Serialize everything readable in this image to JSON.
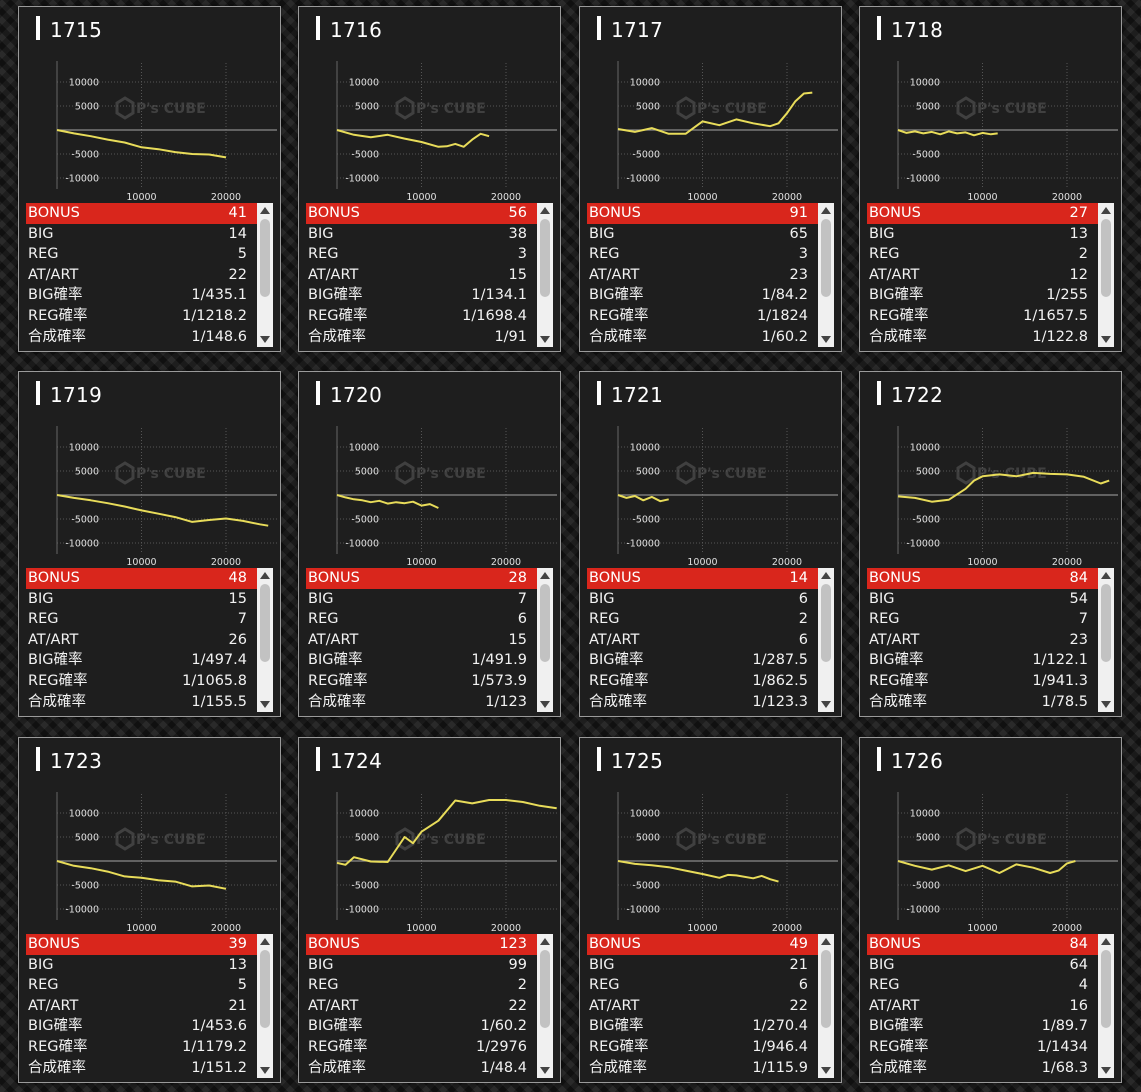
{
  "graph": {
    "y_ticks": [
      10000,
      5000,
      -5000,
      -10000
    ],
    "x_ticks": [
      10000,
      20000
    ],
    "x_max": 26000,
    "y_range": [
      -14000,
      16000
    ],
    "line_color": "#e8dc5a",
    "watermark_text": "P's CUBE"
  },
  "stat_labels": [
    "BONUS",
    "BIG",
    "REG",
    "AT/ART",
    "BIG確率",
    "REG確率",
    "合成確率"
  ],
  "machines": [
    {
      "id": "1715",
      "bonus": "41",
      "big": "14",
      "reg": "5",
      "at_art": "22",
      "big_rate": "1/435.1",
      "reg_rate": "1/1218.2",
      "total_rate": "1/148.6",
      "chart_data": {
        "type": "line",
        "x": [
          0,
          2000,
          4000,
          6000,
          8000,
          10000,
          12000,
          14000,
          16000,
          18000,
          20000
        ],
        "y": [
          0,
          -700,
          -1300,
          -2000,
          -2600,
          -3600,
          -4000,
          -4600,
          -5000,
          -5100,
          -5700
        ]
      }
    },
    {
      "id": "1716",
      "bonus": "56",
      "big": "38",
      "reg": "3",
      "at_art": "15",
      "big_rate": "1/134.1",
      "reg_rate": "1/1698.4",
      "total_rate": "1/91",
      "chart_data": {
        "type": "line",
        "x": [
          0,
          2000,
          4000,
          6000,
          8000,
          10000,
          12000,
          13000,
          14000,
          15000,
          16000,
          17000,
          18000
        ],
        "y": [
          0,
          -1000,
          -1500,
          -1000,
          -1800,
          -2500,
          -3500,
          -3400,
          -2900,
          -3500,
          -2000,
          -800,
          -1300
        ]
      }
    },
    {
      "id": "1717",
      "bonus": "91",
      "big": "65",
      "reg": "3",
      "at_art": "23",
      "big_rate": "1/84.2",
      "reg_rate": "1/1824",
      "total_rate": "1/60.2",
      "chart_data": {
        "type": "line",
        "x": [
          0,
          2000,
          4000,
          6000,
          8000,
          10000,
          12000,
          14000,
          16000,
          18000,
          19000,
          20000,
          21000,
          22000,
          23000
        ],
        "y": [
          200,
          -400,
          400,
          -800,
          -800,
          1800,
          1000,
          2200,
          1400,
          800,
          1400,
          3500,
          6000,
          7600,
          7800
        ]
      }
    },
    {
      "id": "1718",
      "bonus": "27",
      "big": "13",
      "reg": "2",
      "at_art": "12",
      "big_rate": "1/255",
      "reg_rate": "1/1657.5",
      "total_rate": "1/122.8",
      "chart_data": {
        "type": "line",
        "x": [
          0,
          1000,
          2000,
          3000,
          4000,
          5000,
          6000,
          7000,
          8000,
          9000,
          10000,
          11000,
          11800
        ],
        "y": [
          0,
          -600,
          -300,
          -700,
          -400,
          -900,
          -300,
          -700,
          -500,
          -1100,
          -600,
          -900,
          -700
        ]
      }
    },
    {
      "id": "1719",
      "bonus": "48",
      "big": "15",
      "reg": "7",
      "at_art": "26",
      "big_rate": "1/497.4",
      "reg_rate": "1/1065.8",
      "total_rate": "1/155.5",
      "chart_data": {
        "type": "line",
        "x": [
          0,
          2000,
          4000,
          6000,
          8000,
          10000,
          12000,
          14000,
          16000,
          18000,
          20000,
          22000,
          24000,
          25000
        ],
        "y": [
          0,
          -600,
          -1100,
          -1700,
          -2400,
          -3200,
          -3900,
          -4600,
          -5600,
          -5200,
          -4900,
          -5400,
          -6100,
          -6400
        ]
      }
    },
    {
      "id": "1720",
      "bonus": "28",
      "big": "7",
      "reg": "6",
      "at_art": "15",
      "big_rate": "1/491.9",
      "reg_rate": "1/573.9",
      "total_rate": "1/123",
      "chart_data": {
        "type": "line",
        "x": [
          0,
          1000,
          2000,
          3000,
          4000,
          5000,
          6000,
          7000,
          8000,
          9000,
          10000,
          11000,
          12000
        ],
        "y": [
          0,
          -500,
          -900,
          -1100,
          -1500,
          -1200,
          -1800,
          -1500,
          -1700,
          -1400,
          -2200,
          -1900,
          -2700
        ]
      }
    },
    {
      "id": "1721",
      "bonus": "14",
      "big": "6",
      "reg": "2",
      "at_art": "6",
      "big_rate": "1/287.5",
      "reg_rate": "1/862.5",
      "total_rate": "1/123.3",
      "chart_data": {
        "type": "line",
        "x": [
          0,
          1000,
          2000,
          3000,
          4000,
          5000,
          6000
        ],
        "y": [
          0,
          -600,
          -200,
          -1100,
          -400,
          -1300,
          -900
        ]
      }
    },
    {
      "id": "1722",
      "bonus": "84",
      "big": "54",
      "reg": "7",
      "at_art": "23",
      "big_rate": "1/122.1",
      "reg_rate": "1/941.3",
      "total_rate": "1/78.5",
      "chart_data": {
        "type": "line",
        "x": [
          0,
          2000,
          4000,
          6000,
          8000,
          9000,
          10000,
          12000,
          14000,
          16000,
          18000,
          20000,
          22000,
          24000,
          25000
        ],
        "y": [
          -300,
          -600,
          -1400,
          -1000,
          1300,
          3000,
          3900,
          4300,
          3900,
          4600,
          4400,
          4300,
          3800,
          2400,
          3000
        ]
      }
    },
    {
      "id": "1723",
      "bonus": "39",
      "big": "13",
      "reg": "5",
      "at_art": "21",
      "big_rate": "1/453.6",
      "reg_rate": "1/1179.2",
      "total_rate": "1/151.2",
      "chart_data": {
        "type": "line",
        "x": [
          0,
          2000,
          4000,
          6000,
          8000,
          10000,
          12000,
          14000,
          16000,
          18000,
          20000
        ],
        "y": [
          0,
          -1000,
          -1500,
          -2200,
          -3200,
          -3500,
          -4000,
          -4300,
          -5300,
          -5100,
          -5800
        ]
      }
    },
    {
      "id": "1724",
      "bonus": "123",
      "big": "99",
      "reg": "2",
      "at_art": "22",
      "big_rate": "1/60.2",
      "reg_rate": "1/2976",
      "total_rate": "1/48.4",
      "chart_data": {
        "type": "line",
        "x": [
          0,
          1000,
          2000,
          4000,
          6000,
          8000,
          9000,
          10000,
          12000,
          14000,
          16000,
          18000,
          20000,
          22000,
          24000,
          26000
        ],
        "y": [
          -400,
          -800,
          800,
          -100,
          -200,
          5000,
          3700,
          6100,
          8400,
          12600,
          12000,
          12700,
          12700,
          12300,
          11500,
          11000
        ]
      }
    },
    {
      "id": "1725",
      "bonus": "49",
      "big": "21",
      "reg": "6",
      "at_art": "22",
      "big_rate": "1/270.4",
      "reg_rate": "1/946.4",
      "total_rate": "1/115.9",
      "chart_data": {
        "type": "line",
        "x": [
          0,
          2000,
          4000,
          6000,
          8000,
          10000,
          12000,
          13000,
          14000,
          16000,
          17000,
          18000,
          19000
        ],
        "y": [
          0,
          -600,
          -900,
          -1300,
          -2000,
          -2700,
          -3500,
          -2900,
          -3000,
          -3600,
          -3100,
          -3800,
          -4300
        ]
      }
    },
    {
      "id": "1726",
      "bonus": "84",
      "big": "64",
      "reg": "4",
      "at_art": "16",
      "big_rate": "1/89.7",
      "reg_rate": "1/1434",
      "total_rate": "1/68.3",
      "chart_data": {
        "type": "line",
        "x": [
          0,
          2000,
          4000,
          6000,
          8000,
          10000,
          12000,
          14000,
          16000,
          18000,
          19000,
          20000,
          21000
        ],
        "y": [
          0,
          -1000,
          -1800,
          -900,
          -2100,
          -1000,
          -2500,
          -700,
          -1400,
          -2500,
          -2000,
          -500,
          0
        ]
      }
    }
  ]
}
